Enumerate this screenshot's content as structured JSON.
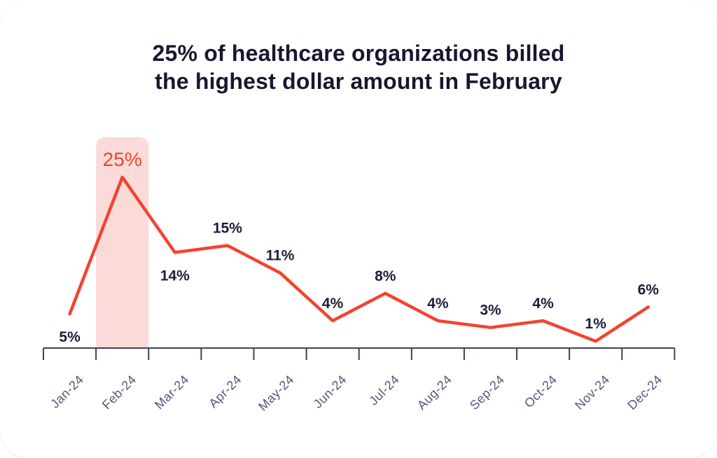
{
  "header": {
    "line1": "25% of healthcare organizations billed",
    "line2": "the highest dollar amount in February"
  },
  "colors": {
    "accent_red": "#f5422e",
    "band_pink": "#fadbd9",
    "title_navy": "#17172f",
    "label_navy": "#1d1d38",
    "axis": "#3f3f5a",
    "month_label": "#565678",
    "card_background": "#ffffff"
  },
  "chart_data": {
    "type": "line",
    "title": "25% of healthcare organizations billed the highest dollar amount in February",
    "categories": [
      "Jan-24",
      "Feb-24",
      "Mar-24",
      "Apr-24",
      "May-24",
      "Jun-24",
      "Jul-24",
      "Aug-24",
      "Sep-24",
      "Oct-24",
      "Nov-24",
      "Dec-24"
    ],
    "values": [
      5,
      25,
      14,
      15,
      11,
      4,
      8,
      4,
      3,
      4,
      1,
      6
    ],
    "unit": "%",
    "xlabel": "",
    "ylabel": "",
    "ylim": [
      0,
      27
    ],
    "grid": false,
    "legend": false,
    "highlight": {
      "category": "Feb-24",
      "index": 1,
      "value": 25,
      "label": "25%"
    },
    "label_positions": [
      "below",
      "above",
      "below",
      "above",
      "above",
      "above",
      "above",
      "above",
      "above",
      "above",
      "above",
      "above"
    ]
  }
}
